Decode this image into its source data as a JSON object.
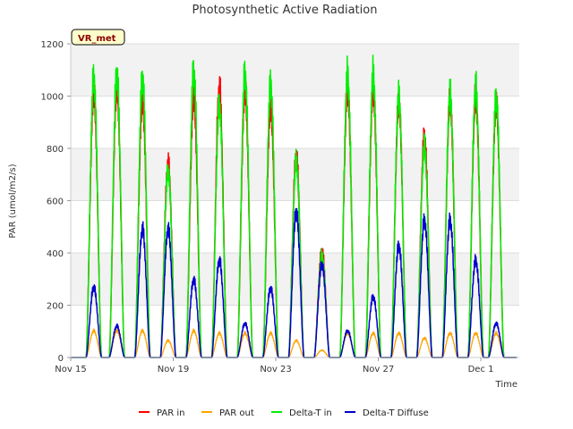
{
  "chart_data": {
    "type": "line",
    "title": "Photosynthetic Active Radiation",
    "xlabel": "Time",
    "ylabel": "PAR (umol/m2/s)",
    "station_label": "VR_met",
    "ylim": [
      0,
      1200
    ],
    "xlim": [
      0,
      17.5
    ],
    "x_unit": "days since Nov 15",
    "y_ticks": [
      0,
      200,
      400,
      600,
      800,
      1000,
      1200
    ],
    "x_ticks": [
      {
        "value": 0,
        "label": "Nov 15"
      },
      {
        "value": 4,
        "label": "Nov 19"
      },
      {
        "value": 8,
        "label": "Nov 23"
      },
      {
        "value": 12,
        "label": "Nov 27"
      },
      {
        "value": 16,
        "label": "Dec 1"
      }
    ],
    "grid": true,
    "legend_position": "bottom",
    "day_centers": [
      0.9,
      1.8,
      2.8,
      3.8,
      4.8,
      5.8,
      6.8,
      7.8,
      8.8,
      9.8,
      10.8,
      11.8,
      12.8,
      13.8,
      14.8,
      15.8,
      16.6
    ],
    "series": [
      {
        "name": "PAR in",
        "color": "#ff0000",
        "width": 1.5,
        "daily_peaks": [
          1090,
          1110,
          1060,
          800,
          1070,
          1110,
          1100,
          1030,
          830,
          440,
          1100,
          1100,
          1050,
          910,
          1060,
          1070,
          1040
        ]
      },
      {
        "name": "PAR out",
        "color": "#ffa500",
        "width": 1.3,
        "daily_peaks": [
          110,
          110,
          110,
          70,
          110,
          100,
          100,
          100,
          70,
          30,
          100,
          100,
          100,
          80,
          100,
          100,
          100
        ]
      },
      {
        "name": "Delta-T in",
        "color": "#00ee00",
        "width": 1.5,
        "daily_peaks": [
          1150,
          1170,
          1150,
          770,
          1180,
          1040,
          1165,
          1125,
          810,
          420,
          1160,
          1160,
          1070,
          870,
          1085,
          1110,
          1070
        ]
      },
      {
        "name": "Delta-T Diffuse",
        "color": "#0000cc",
        "width": 1.5,
        "daily_peaks": [
          290,
          130,
          530,
          530,
          320,
          400,
          140,
          285,
          600,
          385,
          110,
          250,
          460,
          565,
          565,
          400,
          140
        ]
      }
    ]
  }
}
